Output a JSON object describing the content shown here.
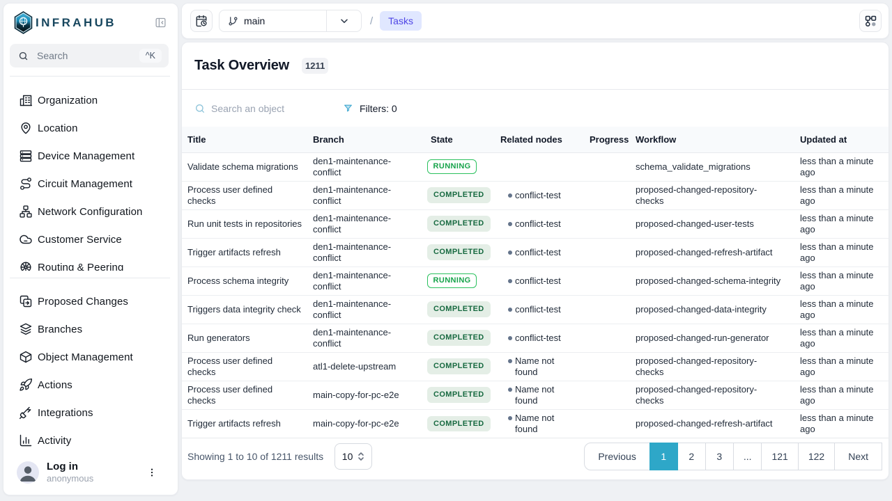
{
  "brand": {
    "name": "INFRAHUB"
  },
  "sidebar": {
    "search": {
      "placeholder": "Search",
      "shortcut": "^K"
    },
    "groups": [
      {
        "items": [
          {
            "icon": "building",
            "label": "Organization"
          },
          {
            "icon": "map-pin",
            "label": "Location"
          },
          {
            "icon": "server",
            "label": "Device Management"
          },
          {
            "icon": "route",
            "label": "Circuit Management"
          },
          {
            "icon": "network",
            "label": "Network Configuration"
          },
          {
            "icon": "cloud",
            "label": "Customer Service"
          },
          {
            "icon": "wheel",
            "label": "Routing & Peering"
          }
        ]
      },
      {
        "items": [
          {
            "icon": "copy-diff",
            "label": "Proposed Changes"
          },
          {
            "icon": "layers",
            "label": "Branches"
          },
          {
            "icon": "cube",
            "label": "Object Management"
          },
          {
            "icon": "rocket",
            "label": "Actions"
          },
          {
            "icon": "plug",
            "label": "Integrations"
          },
          {
            "icon": "chart",
            "label": "Activity"
          }
        ]
      }
    ],
    "user": {
      "title": "Log in",
      "subtitle": "anonymous"
    }
  },
  "topbar": {
    "branch": "main",
    "separator": "/",
    "breadcrumb": "Tasks"
  },
  "page": {
    "title": "Task Overview",
    "count": "1211"
  },
  "toolbar": {
    "search_placeholder": "Search an object",
    "filters_label": "Filters: 0"
  },
  "table": {
    "columns": [
      "Title",
      "Branch",
      "State",
      "Related nodes",
      "Progress",
      "Workflow",
      "Updated at"
    ],
    "rows": [
      {
        "title": "Validate schema migrations",
        "branch": "den1-maintenance-conflict",
        "state": "RUNNING",
        "related": null,
        "progress": "",
        "workflow": "schema_validate_migrations",
        "updated": "less than a minute ago"
      },
      {
        "title": "Process user defined checks",
        "branch": "den1-maintenance-conflict",
        "state": "COMPLETED",
        "related": "conflict-test",
        "progress": "",
        "workflow": "proposed-changed-repository-checks",
        "updated": "less than a minute ago"
      },
      {
        "title": "Run unit tests in repositories",
        "branch": "den1-maintenance-conflict",
        "state": "COMPLETED",
        "related": "conflict-test",
        "progress": "",
        "workflow": "proposed-changed-user-tests",
        "updated": "less than a minute ago"
      },
      {
        "title": "Trigger artifacts refresh",
        "branch": "den1-maintenance-conflict",
        "state": "COMPLETED",
        "related": "conflict-test",
        "progress": "",
        "workflow": "proposed-changed-refresh-artifact",
        "updated": "less than a minute ago"
      },
      {
        "title": "Process schema integrity",
        "branch": "den1-maintenance-conflict",
        "state": "RUNNING",
        "related": "conflict-test",
        "progress": "",
        "workflow": "proposed-changed-schema-integrity",
        "updated": "less than a minute ago"
      },
      {
        "title": "Triggers data integrity check",
        "branch": "den1-maintenance-conflict",
        "state": "COMPLETED",
        "related": "conflict-test",
        "progress": "",
        "workflow": "proposed-changed-data-integrity",
        "updated": "less than a minute ago"
      },
      {
        "title": "Run generators",
        "branch": "den1-maintenance-conflict",
        "state": "COMPLETED",
        "related": "conflict-test",
        "progress": "",
        "workflow": "proposed-changed-run-generator",
        "updated": "less than a minute ago"
      },
      {
        "title": "Process user defined checks",
        "branch": "atl1-delete-upstream",
        "state": "COMPLETED",
        "related": "Name not found",
        "progress": "",
        "workflow": "proposed-changed-repository-checks",
        "updated": "less than a minute ago"
      },
      {
        "title": "Process user defined checks",
        "branch": "main-copy-for-pc-e2e",
        "state": "COMPLETED",
        "related": "Name not found",
        "progress": "",
        "workflow": "proposed-changed-repository-checks",
        "updated": "less than a minute ago"
      },
      {
        "title": "Trigger artifacts refresh",
        "branch": "main-copy-for-pc-e2e",
        "state": "COMPLETED",
        "related": "Name not found",
        "progress": "",
        "workflow": "proposed-changed-refresh-artifact",
        "updated": "less than a minute ago"
      }
    ]
  },
  "footer": {
    "summary": "Showing 1 to 10 of 1211 results",
    "page_size": "10",
    "pages": [
      "Previous",
      "1",
      "2",
      "3",
      "...",
      "121",
      "122",
      "Next"
    ],
    "active_page": "1"
  },
  "colors": {
    "accent_teal": "#2ea7c8",
    "breadcrumb_indigo": "#4f46e5",
    "breadcrumb_bg": "#e0e7ff",
    "running_green": "#16a34a",
    "completed_green": "#186a41",
    "completed_bg": "#e4eee6"
  }
}
